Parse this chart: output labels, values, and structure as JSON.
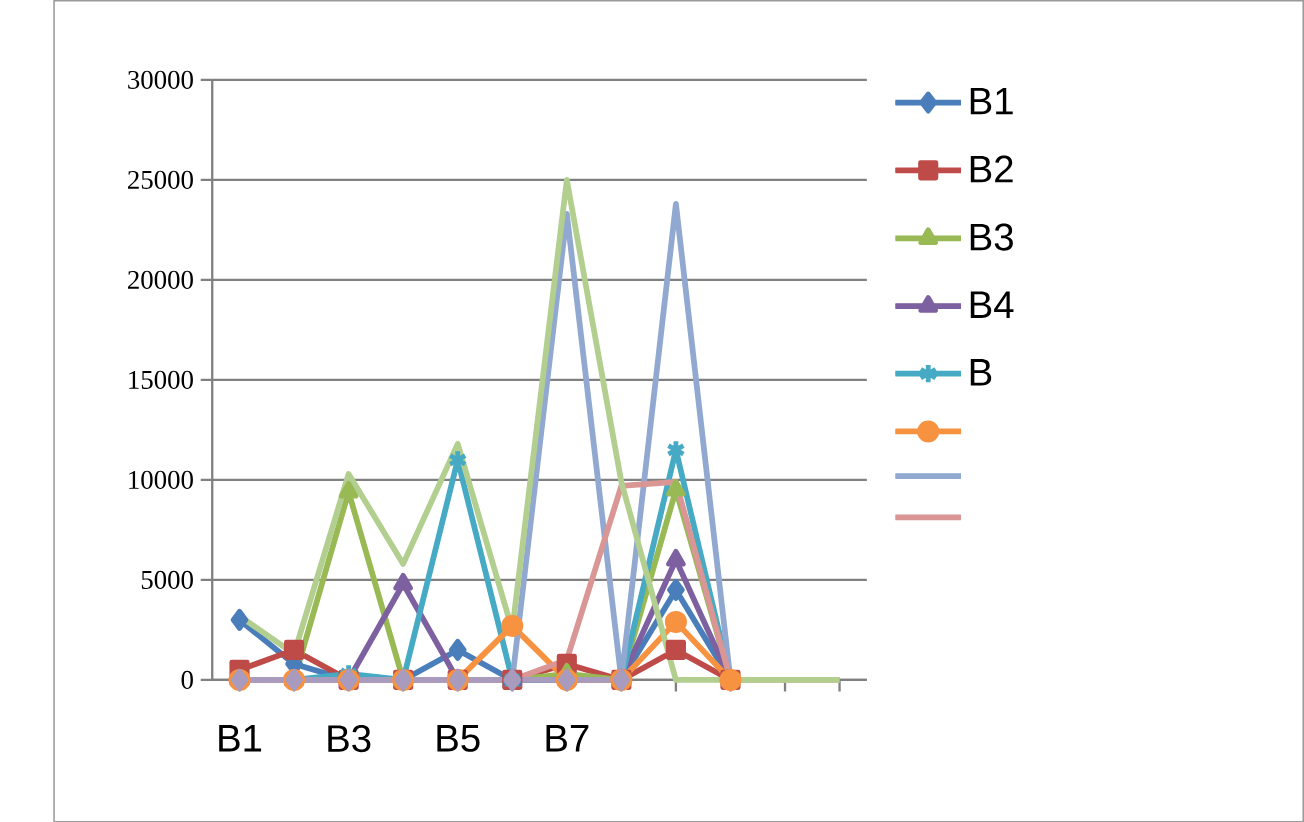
{
  "chart_data": {
    "type": "line",
    "categories": [
      "B1",
      null,
      "B3",
      null,
      "B5",
      null,
      "B7",
      null,
      null,
      null,
      null,
      null
    ],
    "series": [
      {
        "name": "B1",
        "color": "#4a7ebb",
        "marker": "diamond",
        "values": [
          3000,
          800,
          0,
          0,
          1500,
          0,
          0,
          0,
          4500,
          0,
          null,
          null
        ]
      },
      {
        "name": "B2",
        "color": "#be4b48",
        "marker": "square",
        "values": [
          500,
          1500,
          0,
          0,
          0,
          0,
          800,
          0,
          1500,
          0,
          null,
          null
        ]
      },
      {
        "name": "B3",
        "color": "#98b954",
        "marker": "triangle",
        "values": [
          0,
          0,
          9400,
          0,
          0,
          0,
          300,
          0,
          9500,
          0,
          null,
          null
        ]
      },
      {
        "name": "B4",
        "color": "#7d60a0",
        "marker": "triangle",
        "values": [
          0,
          0,
          0,
          4800,
          0,
          0,
          0,
          0,
          6000,
          0,
          null,
          null
        ]
      },
      {
        "name": "B",
        "color": "#46aac5",
        "marker": "cross",
        "values": [
          0,
          0,
          300,
          0,
          11000,
          0,
          0,
          0,
          11500,
          0,
          null,
          null
        ]
      },
      {
        "color": "#f69240",
        "marker": "circle",
        "values": [
          0,
          0,
          0,
          0,
          0,
          2700,
          0,
          0,
          2900,
          0,
          null,
          null
        ]
      },
      {
        "color": "#91a8d0",
        "marker": "none",
        "values": [
          0,
          0,
          0,
          0,
          0,
          0,
          23300,
          0,
          23800,
          0,
          null,
          null
        ]
      },
      {
        "color": "#d99694",
        "marker": "none",
        "values": [
          0,
          0,
          0,
          0,
          0,
          0,
          1000,
          9700,
          9900,
          0,
          0,
          0
        ]
      },
      {
        "color": "#b3cf8f",
        "marker": "none",
        "values": [
          3200,
          1300,
          10300,
          5800,
          11800,
          2500,
          25000,
          9900,
          0,
          0,
          0,
          0
        ]
      },
      {
        "color": "#a99bbd",
        "marker": "diamond",
        "values": [
          0,
          0,
          0,
          0,
          0,
          0,
          0,
          0,
          null,
          null,
          null,
          null
        ]
      }
    ],
    "ylim": [
      0,
      30000
    ],
    "yticks": [
      0,
      5000,
      10000,
      15000,
      20000,
      25000,
      30000
    ],
    "grid": "y",
    "legend": "right"
  }
}
